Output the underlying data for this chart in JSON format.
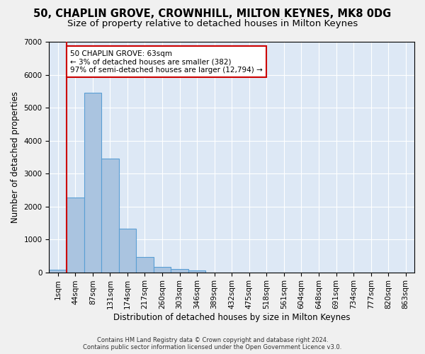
{
  "title_line1": "50, CHAPLIN GROVE, CROWNHILL, MILTON KEYNES, MK8 0DG",
  "title_line2": "Size of property relative to detached houses in Milton Keynes",
  "xlabel": "Distribution of detached houses by size in Milton Keynes",
  "ylabel": "Number of detached properties",
  "bar_values": [
    80,
    2280,
    5450,
    3450,
    1320,
    470,
    160,
    90,
    60,
    0,
    0,
    0,
    0,
    0,
    0,
    0,
    0,
    0,
    0,
    0,
    0
  ],
  "bar_labels": [
    "1sqm",
    "44sqm",
    "87sqm",
    "131sqm",
    "174sqm",
    "217sqm",
    "260sqm",
    "303sqm",
    "346sqm",
    "389sqm",
    "432sqm",
    "475sqm",
    "518sqm",
    "561sqm",
    "604sqm",
    "648sqm",
    "691sqm",
    "734sqm",
    "777sqm",
    "820sqm",
    "863sqm"
  ],
  "bar_color": "#aac4e0",
  "bar_edge_color": "#5a9fd4",
  "ylim": [
    0,
    7000
  ],
  "yticks": [
    0,
    1000,
    2000,
    3000,
    4000,
    5000,
    6000,
    7000
  ],
  "vline_x": 1.0,
  "vline_color": "#cc0000",
  "annotation_text": "50 CHAPLIN GROVE: 63sqm\n← 3% of detached houses are smaller (382)\n97% of semi-detached houses are larger (12,794) →",
  "annotation_box_color": "#ffffff",
  "annotation_box_edge": "#cc0000",
  "footer_line1": "Contains HM Land Registry data © Crown copyright and database right 2024.",
  "footer_line2": "Contains public sector information licensed under the Open Government Licence v3.0.",
  "background_color": "#dde8f5",
  "grid_color": "#ffffff",
  "title_fontsize": 10.5,
  "subtitle_fontsize": 9.5,
  "tick_fontsize": 7.5
}
